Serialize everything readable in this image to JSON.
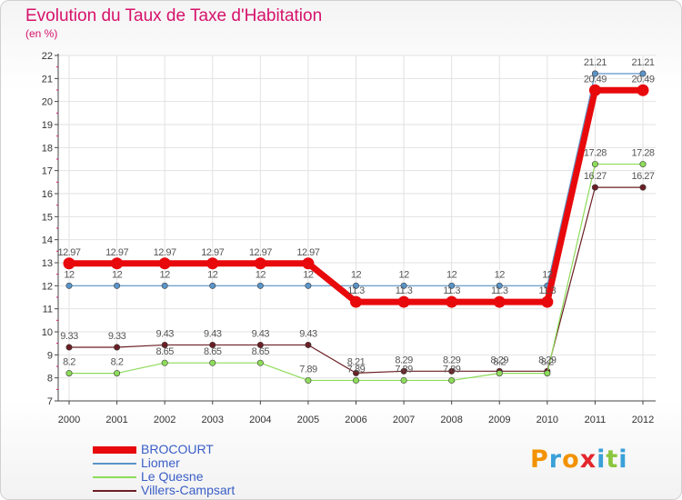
{
  "chart_data": {
    "type": "line",
    "title": "Evolution du Taux de Taxe d'Habitation",
    "ylabel": "(en %)",
    "xlabel": "",
    "categories": [
      "2000",
      "2001",
      "2002",
      "2003",
      "2004",
      "2005",
      "2006",
      "2007",
      "2008",
      "2009",
      "2010",
      "2011",
      "2012"
    ],
    "yticks": [
      7,
      8,
      9,
      10,
      11,
      12,
      13,
      14,
      15,
      16,
      17,
      18,
      19,
      20,
      21,
      22
    ],
    "ylim": [
      7,
      22
    ],
    "grid": true,
    "legend_position": "bottom-left",
    "series": [
      {
        "name": "BROCOURT",
        "color": "#e8090c",
        "values": [
          12.97,
          12.97,
          12.97,
          12.97,
          12.97,
          12.97,
          11.3,
          11.3,
          11.3,
          11.3,
          11.3,
          20.49,
          20.49
        ],
        "labels": [
          "12.97",
          "12.97",
          "12.97",
          "12.97",
          "12.97",
          "12.97",
          "11.3",
          "11.3",
          "11.3",
          "11.3",
          "11.3",
          "20.49",
          "20.49"
        ]
      },
      {
        "name": "Liomer",
        "color": "#5a94c8",
        "values": [
          12,
          12,
          12,
          12,
          12,
          12,
          12,
          12,
          12,
          12,
          12,
          21.21,
          21.21
        ],
        "labels": [
          "12",
          "12",
          "12",
          "12",
          "12",
          "12",
          "12",
          "12",
          "12",
          "12",
          "12",
          "21.21",
          "21.21"
        ]
      },
      {
        "name": "Le Quesne",
        "color": "#8edc5a",
        "values": [
          8.2,
          8.2,
          8.65,
          8.65,
          8.65,
          7.89,
          7.89,
          7.89,
          7.89,
          8.2,
          8.2,
          17.28,
          17.28
        ],
        "labels": [
          "8.2",
          "8.2",
          "8.65",
          "8.65",
          "8.65",
          "7.89",
          "7.89",
          "7.89",
          "7.89",
          "8.2",
          "8.2",
          "17.28",
          "17.28"
        ]
      },
      {
        "name": "Villers-Campsart",
        "color": "#6b1f24",
        "values": [
          9.33,
          9.33,
          9.43,
          9.43,
          9.43,
          9.43,
          8.21,
          8.29,
          8.29,
          8.29,
          8.29,
          16.27,
          16.27
        ],
        "labels": [
          "9.33",
          "9.33",
          "9.43",
          "9.43",
          "9.43",
          "9.43",
          "8.21",
          "8.29",
          "8.29",
          "8.29",
          "8.29",
          "16.27",
          "16.27"
        ]
      }
    ]
  },
  "logo": {
    "letters": [
      "P",
      "r",
      "o",
      "x",
      "i",
      "t",
      "i"
    ],
    "colors": [
      "#f39200",
      "#3aa0d8",
      "#f39200",
      "#e3262d",
      "#3aa0d8",
      "#8cc63f",
      "#3aa0d8"
    ]
  }
}
